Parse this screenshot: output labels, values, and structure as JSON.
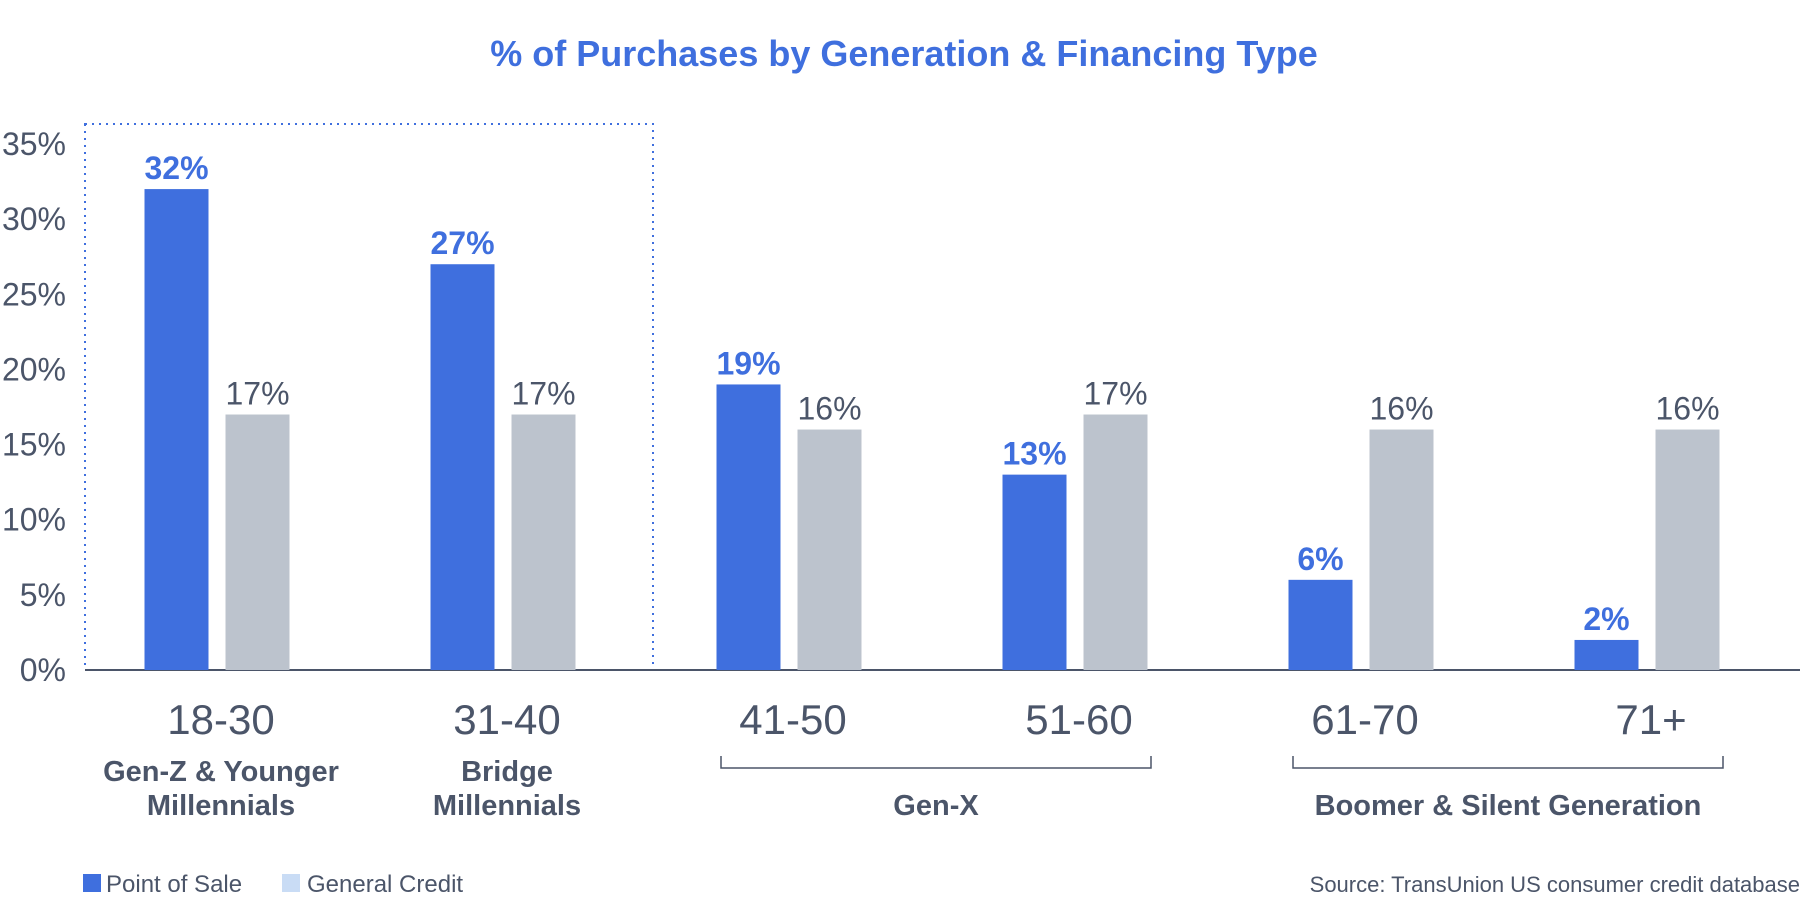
{
  "colors": {
    "point_of_sale": "#3f6fde",
    "general_credit": "#bcc3cd",
    "legend_general_credit": "#c9dcf5",
    "title": "#3f6fde",
    "axis": "#4b5569"
  },
  "chart_data": {
    "type": "bar",
    "title": "% of Purchases by Generation & Financing Type",
    "xlabel": "",
    "ylabel": "",
    "ylim": [
      0,
      35
    ],
    "yticks": [
      "0%",
      "5%",
      "10%",
      "15%",
      "20%",
      "25%",
      "30%",
      "35%"
    ],
    "categories": [
      "18-30",
      "31-40",
      "41-50",
      "51-60",
      "61-70",
      "71+"
    ],
    "series": [
      {
        "name": "Point of Sale",
        "values": [
          32,
          27,
          19,
          13,
          6,
          2
        ],
        "labels": [
          "32%",
          "27%",
          "19%",
          "13%",
          "6%",
          "2%"
        ]
      },
      {
        "name": "General Credit",
        "values": [
          17,
          17,
          16,
          17,
          16,
          16
        ],
        "labels": [
          "17%",
          "17%",
          "16%",
          "17%",
          "16%",
          "16%"
        ]
      }
    ],
    "groups": [
      {
        "label": [
          "Gen-Z & Younger",
          "Millennials"
        ],
        "categories": [
          "18-30"
        ]
      },
      {
        "label": [
          "Bridge",
          "Millennials"
        ],
        "categories": [
          "31-40"
        ]
      },
      {
        "label": [
          "Gen-X"
        ],
        "categories": [
          "41-50",
          "51-60"
        ]
      },
      {
        "label": [
          "Boomer & Silent Generation"
        ],
        "categories": [
          "61-70",
          "71+"
        ]
      }
    ],
    "highlight": "dotted box around 18-30 and 31-40",
    "legend_placement": "bottom-left",
    "grid": false
  },
  "source": "Source: TransUnion US consumer credit database"
}
